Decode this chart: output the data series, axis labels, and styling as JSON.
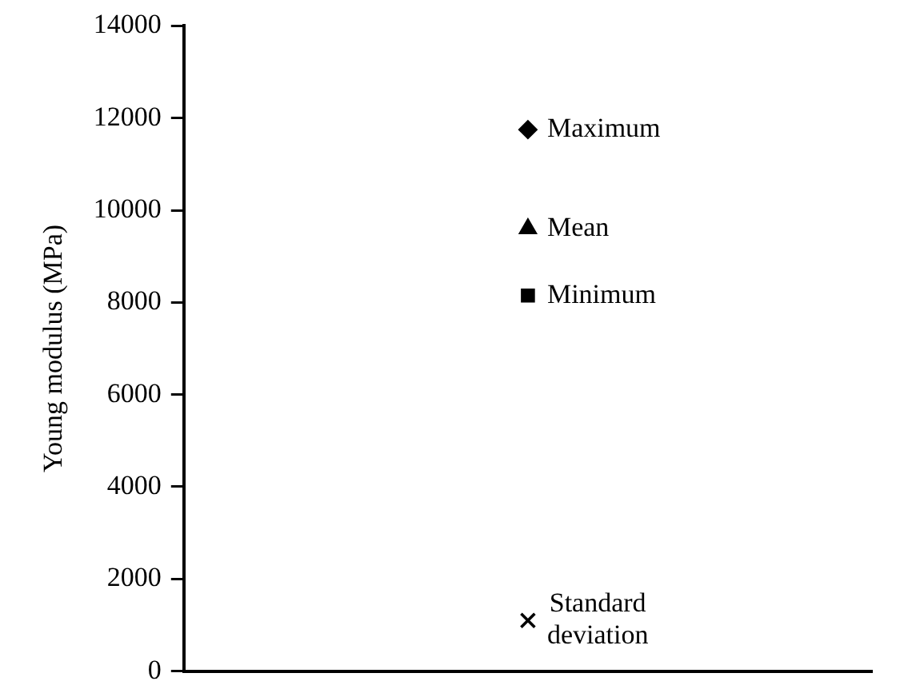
{
  "chart_data": {
    "type": "scatter",
    "ylabel": "Young modulus (MPa)",
    "categories": [
      null
    ],
    "ylim": [
      0,
      14000
    ],
    "yticks": [
      0,
      2000,
      4000,
      6000,
      8000,
      10000,
      12000,
      14000
    ],
    "grid": false,
    "legend": false,
    "tick_labels": "y",
    "series": [
      {
        "name": "Maximum",
        "color": "#000000",
        "marker": "diamond",
        "values": [
          11750
        ]
      },
      {
        "name": "Mean",
        "color": "#000000",
        "marker": "triangle",
        "values": [
          9600
        ]
      },
      {
        "name": "Minimum",
        "color": "#000000",
        "marker": "square",
        "values": [
          8150
        ]
      },
      {
        "name": "Standard deviation",
        "color": "#000000",
        "marker": "cross",
        "values": [
          1100
        ]
      }
    ]
  }
}
